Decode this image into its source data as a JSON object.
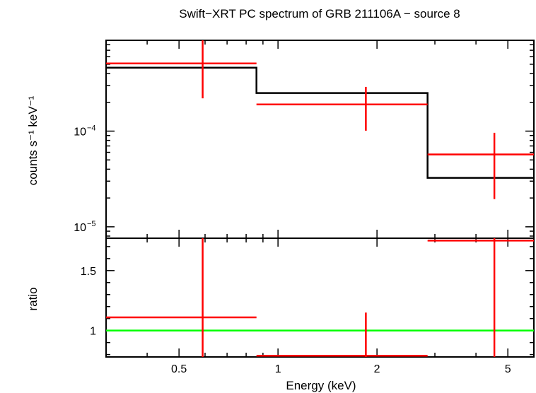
{
  "chart_data": [
    {
      "type": "step",
      "title": "Swift−XRT PC spectrum of GRB 211106A − source 8",
      "xlabel": "Energy (keV)",
      "ylabel": "counts s⁻¹ keV⁻¹",
      "x_scale": "log",
      "y_scale": "log",
      "xlim": [
        0.3,
        6.0
      ],
      "ylim": [
        7.6e-06,
        0.00089
      ],
      "y_ticks": [
        {
          "value": 0.0001,
          "mantissa": "10",
          "exponent": "−4"
        },
        {
          "value": 1e-05,
          "mantissa": "10",
          "exponent": "−5"
        }
      ],
      "model": {
        "name": "model",
        "color": "#000000",
        "bins": [
          {
            "x_low": 0.3,
            "x_high": 0.86,
            "y": 0.00046
          },
          {
            "x_low": 0.86,
            "x_high": 2.85,
            "y": 0.00025
          },
          {
            "x_low": 2.85,
            "x_high": 6.0,
            "y": 3.25e-05
          }
        ]
      },
      "data": {
        "name": "data",
        "color": "#ff0000",
        "points": [
          {
            "x": 0.59,
            "x_low": 0.3,
            "x_high": 0.86,
            "y": 0.00051,
            "y_low": 0.00022,
            "y_high": 0.00089
          },
          {
            "x": 1.85,
            "x_low": 0.86,
            "x_high": 2.85,
            "y": 0.00019,
            "y_low": 0.000101,
            "y_high": 0.00029
          },
          {
            "x": 4.55,
            "x_low": 2.85,
            "x_high": 6.0,
            "y": 5.7e-05,
            "y_low": 1.95e-05,
            "y_high": 9.6e-05
          }
        ]
      }
    },
    {
      "type": "scatter",
      "title": "",
      "xlabel": "Energy (keV)",
      "ylabel": "ratio",
      "x_scale": "log",
      "y_scale": "linear",
      "xlim": [
        0.3,
        6.0
      ],
      "ylim": [
        0.78,
        1.77
      ],
      "x_ticks": [
        {
          "value": 0.5,
          "label": "0.5"
        },
        {
          "value": 1,
          "label": "1"
        },
        {
          "value": 2,
          "label": "2"
        },
        {
          "value": 5,
          "label": "5"
        }
      ],
      "y_ticks": [
        {
          "value": 1,
          "label": "1"
        },
        {
          "value": 1.5,
          "label": "1.5"
        }
      ],
      "reference_line": {
        "y": 1,
        "color": "#00ff00"
      },
      "data": {
        "color": "#ff0000",
        "points": [
          {
            "x": 0.59,
            "x_low": 0.3,
            "x_high": 0.86,
            "y": 1.11,
            "y_low": 0.78,
            "y_high": 1.77
          },
          {
            "x": 1.85,
            "x_low": 0.86,
            "x_high": 2.85,
            "y": 0.79,
            "y_low": 0.78,
            "y_high": 1.15
          },
          {
            "x": 4.55,
            "x_low": 2.85,
            "x_high": 6.0,
            "y": 1.75,
            "y_low": 0.78,
            "y_high": 1.77
          }
        ]
      }
    }
  ]
}
